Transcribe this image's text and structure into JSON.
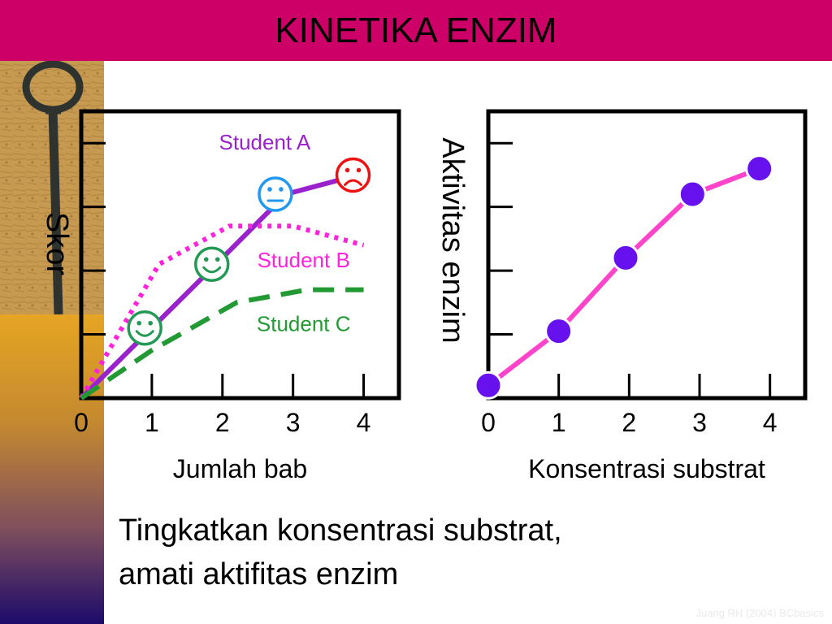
{
  "slide": {
    "title": "KINETIKA ENZIM",
    "caption_line1": "Tingkatkan konsentrasi substrat,",
    "caption_line2": "amati aktifitas enzim",
    "footer": "Juang RH (2004) BCbasics"
  },
  "colors": {
    "header": "#cc0066",
    "student_a": "#9922cc",
    "student_b": "#ff22dd",
    "student_c": "#229933",
    "enzyme_line": "#ff44cc",
    "enzyme_point": "#6611ee",
    "smiley_happy": "#229955",
    "smiley_neutral": "#2299ee",
    "smiley_sad": "#ee1111"
  },
  "chart_data": [
    {
      "type": "line",
      "ylabel": "Skor",
      "xlabel": "Jumlah bab",
      "x_ticks": [
        "0",
        "1",
        "2",
        "3",
        "4"
      ],
      "xlim": [
        0,
        4.5
      ],
      "ylim": [
        0,
        4.5
      ],
      "grid": false,
      "series": [
        {
          "name": "Student A",
          "style": "solid",
          "color": "#9922cc",
          "x": [
            0,
            1,
            2,
            2.9,
            3.75
          ],
          "y": [
            0,
            1.1,
            2.2,
            3.2,
            3.45
          ]
        },
        {
          "name": "Student B",
          "style": "dotted",
          "color": "#ff22dd",
          "x": [
            0,
            1.1,
            2.1,
            3,
            4
          ],
          "y": [
            0,
            2.1,
            2.7,
            2.7,
            2.4
          ]
        },
        {
          "name": "Student C",
          "style": "dashed",
          "color": "#229933",
          "x": [
            0,
            1,
            2.2,
            3.2,
            4
          ],
          "y": [
            0,
            0.75,
            1.5,
            1.7,
            1.7
          ]
        }
      ],
      "annotations": [
        {
          "name": "happy-smiley-icon",
          "glyph": "☺",
          "x": 0.9,
          "y": 1.1,
          "color": "#229955"
        },
        {
          "name": "happy-smiley-icon",
          "glyph": "☺",
          "x": 1.85,
          "y": 2.1,
          "color": "#229955"
        },
        {
          "name": "neutral-smiley-icon",
          "glyph": "😐",
          "x": 2.75,
          "y": 3.2,
          "color": "#2299ee"
        },
        {
          "name": "sad-smiley-icon",
          "glyph": "☹",
          "x": 3.85,
          "y": 3.5,
          "color": "#ee1111"
        }
      ],
      "series_labels": [
        {
          "text": "Student A",
          "x": 2.6,
          "y": 3.9,
          "color": "#9922cc"
        },
        {
          "text": "Student B",
          "x": 3.15,
          "y": 2.05,
          "color": "#ff22dd"
        },
        {
          "text": "Student C",
          "x": 3.15,
          "y": 1.05,
          "color": "#229933"
        }
      ]
    },
    {
      "type": "line",
      "ylabel": "Aktivitas enzim",
      "xlabel": "Konsentrasi substrat",
      "x_ticks": [
        "0",
        "1",
        "2",
        "3",
        "4"
      ],
      "xlim": [
        0,
        4.5
      ],
      "ylim": [
        0,
        4.5
      ],
      "grid": false,
      "series": [
        {
          "color": "#ff44cc",
          "x": [
            0,
            1,
            1.95,
            2.9,
            3.85
          ],
          "y": [
            0.2,
            1.05,
            2.2,
            3.2,
            3.6
          ]
        }
      ]
    }
  ]
}
